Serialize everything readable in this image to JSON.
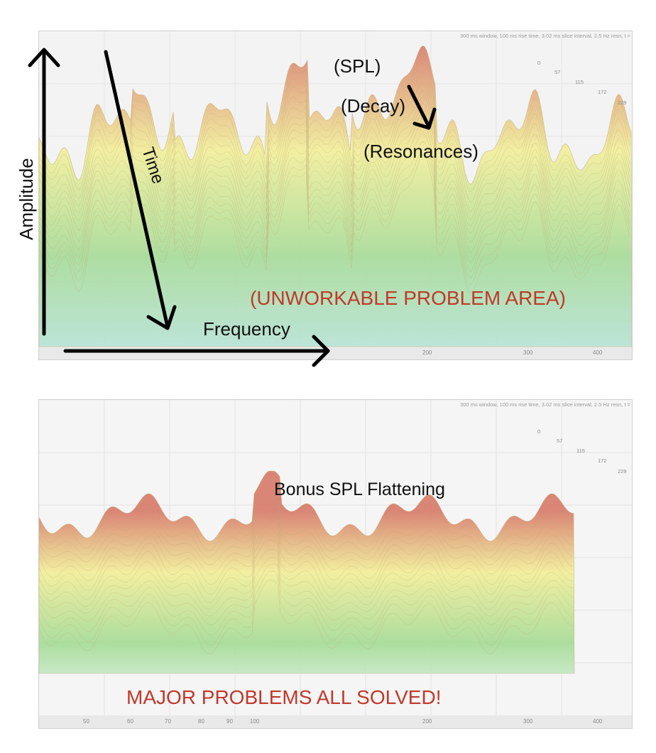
{
  "chart_data": [
    {
      "type": "waterfall",
      "subtitle": "300 ms window, 100 ms rise time, 3.02 ms slice interval, 2.5 Hz resn, t =",
      "x_ticks": [
        "200",
        "300",
        "400"
      ],
      "time_ticks": [
        "0",
        "57",
        "115",
        "172",
        "229"
      ],
      "annotations": {
        "amplitude": "Amplitude",
        "time": "Time",
        "frequency": "Frequency",
        "spl": "(SPL)",
        "decay": "(Decay)",
        "resonances": "(Resonances)",
        "problem": "(UNWORKABLE PROBLEM AREA)"
      }
    },
    {
      "type": "waterfall",
      "subtitle": "300 ms window, 100 ms rise time, 3.02 ms slice interval, 2.5 Hz resn, t =",
      "x_ticks": [
        "50",
        "60",
        "70",
        "80",
        "90",
        "100",
        "200",
        "300",
        "400"
      ],
      "time_ticks": [
        "0",
        "57",
        "115",
        "172",
        "229"
      ],
      "annotations": {
        "bonus": "Bonus SPL Flattening",
        "solved": "MAJOR PROBLEMS ALL SOLVED!"
      }
    }
  ],
  "colors": {
    "peak": "#d9806f",
    "mid": "#f2ef9c",
    "low": "#a9dc9a",
    "base": "#b8e3d6",
    "red_text": "#c0392b"
  }
}
